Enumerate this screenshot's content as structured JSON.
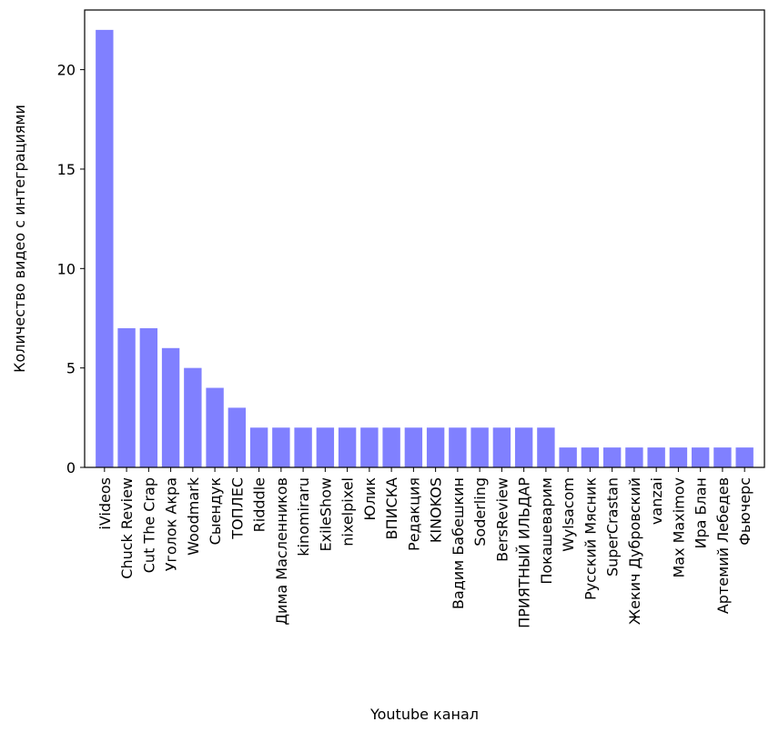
{
  "chart_data": {
    "type": "bar",
    "xlabel": "Youtube канал",
    "ylabel": "Количество видео с интеграциями",
    "ylim": [
      0,
      23
    ],
    "yticks": [
      0,
      5,
      10,
      15,
      20
    ],
    "grid": false,
    "bar_color": "#8080ff",
    "categories": [
      "iVideos",
      "Chuck Review",
      "Cut The Crap",
      "Уголок Акра",
      "Woodmark",
      "Сыендук",
      "ТОПЛЕС",
      "Ridddle",
      "Дима Масленников",
      "kinomiraru",
      "ExileShow",
      "nixelpixel",
      "Юлик",
      "ВПИСКА",
      "Редакция",
      "KINOKOS",
      "Вадим Бабешкин",
      "Soderling",
      "BersReview",
      "ПРИЯТНЫЙ ИЛЬДАР",
      "Покашеварим",
      "Wylsacom",
      "Русский Мясник",
      "SuperCrastan",
      "Жекич Дубровский",
      "vanzai",
      "Max Maximov",
      "Ира Блан",
      "Артемий Лебедев",
      "Фьючерс"
    ],
    "values": [
      22,
      7,
      7,
      6,
      5,
      4,
      3,
      2,
      2,
      2,
      2,
      2,
      2,
      2,
      2,
      2,
      2,
      2,
      2,
      2,
      2,
      1,
      1,
      1,
      1,
      1,
      1,
      1,
      1,
      1
    ]
  }
}
